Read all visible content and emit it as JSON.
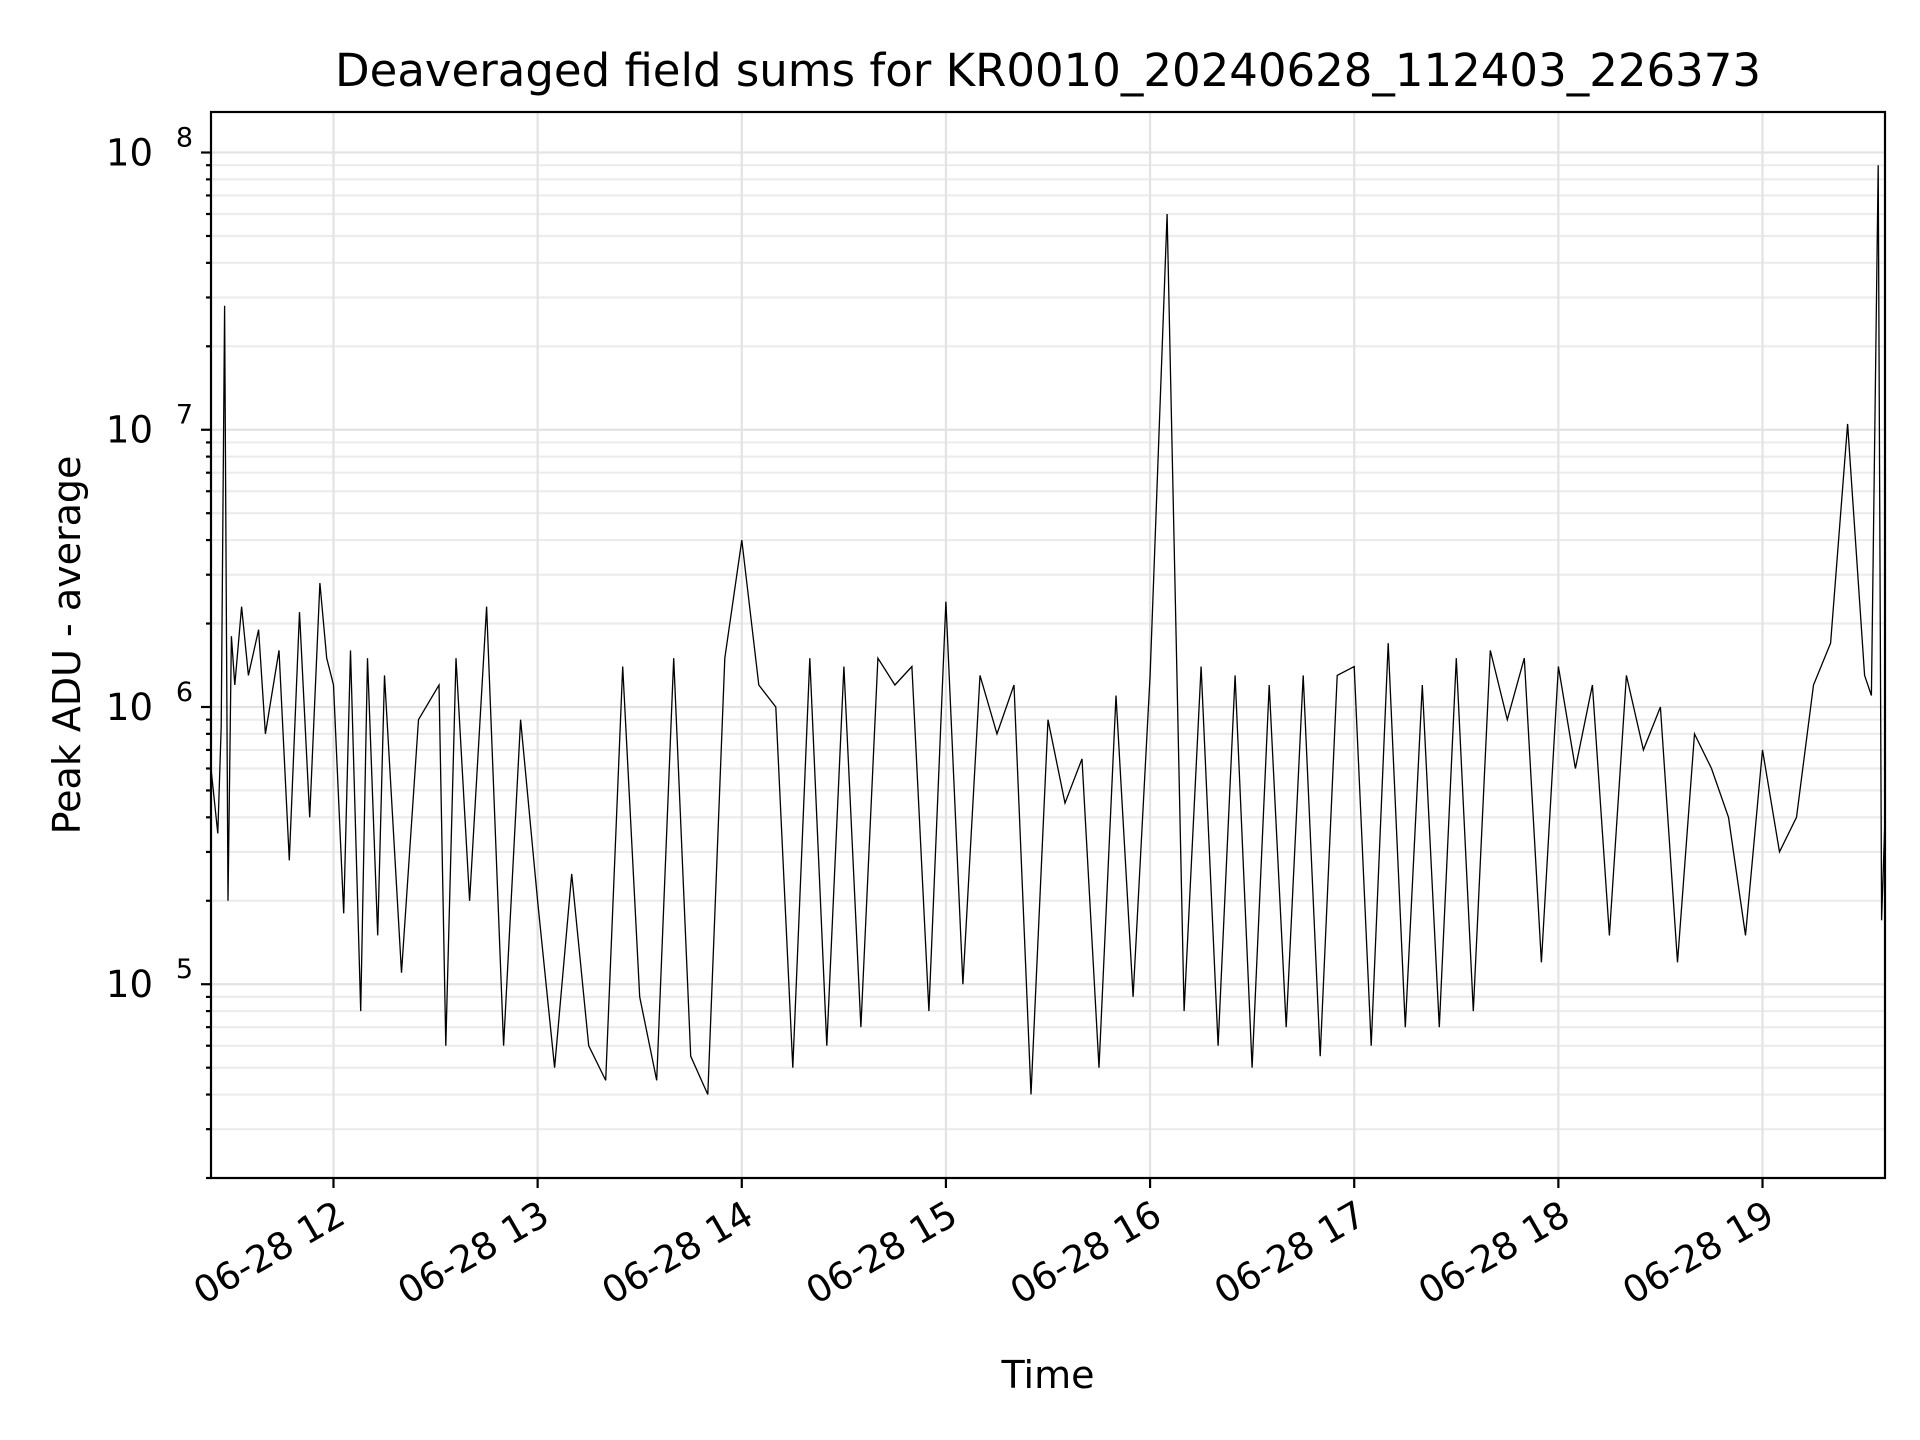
{
  "chart_data": {
    "type": "line",
    "title": "Deaveraged field sums for KR0010_20240628_112403_226373",
    "xlabel": "Time",
    "ylabel": "Peak ADU - average",
    "x_axis": {
      "type": "datetime",
      "range": [
        "2024-06-28 11:24",
        "2024-06-28 19:36"
      ],
      "ticks": [
        "06-28 12",
        "06-28 13",
        "06-28 14",
        "06-28 15",
        "06-28 16",
        "06-28 17",
        "06-28 18",
        "06-28 19"
      ]
    },
    "y_axis": {
      "scale": "log",
      "range": [
        20000,
        140000000
      ],
      "ticks": [
        {
          "base": "10",
          "exp": "5"
        },
        {
          "base": "10",
          "exp": "6"
        },
        {
          "base": "10",
          "exp": "7"
        },
        {
          "base": "10",
          "exp": "8"
        }
      ]
    },
    "grid": true,
    "legend": "none",
    "line_color": "#000000",
    "series": [
      {
        "x": [
          "2024-06-28 11:24",
          "2024-06-28 11:26",
          "2024-06-28 11:27",
          "2024-06-28 11:28",
          "2024-06-28 11:29",
          "2024-06-28 11:30",
          "2024-06-28 11:31",
          "2024-06-28 11:33",
          "2024-06-28 11:35",
          "2024-06-28 11:38",
          "2024-06-28 11:40",
          "2024-06-28 11:44",
          "2024-06-28 11:47",
          "2024-06-28 11:50",
          "2024-06-28 11:53",
          "2024-06-28 11:56",
          "2024-06-28 11:58",
          "2024-06-28 12:00",
          "2024-06-28 12:03",
          "2024-06-28 12:05",
          "2024-06-28 12:08",
          "2024-06-28 12:10",
          "2024-06-28 12:13",
          "2024-06-28 12:15",
          "2024-06-28 12:20",
          "2024-06-28 12:25",
          "2024-06-28 12:31",
          "2024-06-28 12:33",
          "2024-06-28 12:36",
          "2024-06-28 12:40",
          "2024-06-28 12:45",
          "2024-06-28 12:50",
          "2024-06-28 12:55",
          "2024-06-28 13:00",
          "2024-06-28 13:05",
          "2024-06-28 13:10",
          "2024-06-28 13:15",
          "2024-06-28 13:20",
          "2024-06-28 13:25",
          "2024-06-28 13:30",
          "2024-06-28 13:35",
          "2024-06-28 13:40",
          "2024-06-28 13:45",
          "2024-06-28 13:50",
          "2024-06-28 13:55",
          "2024-06-28 14:00",
          "2024-06-28 14:05",
          "2024-06-28 14:10",
          "2024-06-28 14:15",
          "2024-06-28 14:20",
          "2024-06-28 14:25",
          "2024-06-28 14:30",
          "2024-06-28 14:35",
          "2024-06-28 14:40",
          "2024-06-28 14:45",
          "2024-06-28 14:50",
          "2024-06-28 14:55",
          "2024-06-28 15:00",
          "2024-06-28 15:05",
          "2024-06-28 15:10",
          "2024-06-28 15:15",
          "2024-06-28 15:20",
          "2024-06-28 15:25",
          "2024-06-28 15:30",
          "2024-06-28 15:35",
          "2024-06-28 15:40",
          "2024-06-28 15:45",
          "2024-06-28 15:50",
          "2024-06-28 15:55",
          "2024-06-28 16:00",
          "2024-06-28 16:05",
          "2024-06-28 16:10",
          "2024-06-28 16:15",
          "2024-06-28 16:20",
          "2024-06-28 16:25",
          "2024-06-28 16:30",
          "2024-06-28 16:35",
          "2024-06-28 16:40",
          "2024-06-28 16:45",
          "2024-06-28 16:50",
          "2024-06-28 16:55",
          "2024-06-28 17:00",
          "2024-06-28 17:05",
          "2024-06-28 17:10",
          "2024-06-28 17:15",
          "2024-06-28 17:20",
          "2024-06-28 17:25",
          "2024-06-28 17:30",
          "2024-06-28 17:35",
          "2024-06-28 17:40",
          "2024-06-28 17:45",
          "2024-06-28 17:50",
          "2024-06-28 17:55",
          "2024-06-28 18:00",
          "2024-06-28 18:05",
          "2024-06-28 18:10",
          "2024-06-28 18:15",
          "2024-06-28 18:20",
          "2024-06-28 18:25",
          "2024-06-28 18:30",
          "2024-06-28 18:35",
          "2024-06-28 18:40",
          "2024-06-28 18:45",
          "2024-06-28 18:50",
          "2024-06-28 18:55",
          "2024-06-28 19:00",
          "2024-06-28 19:05",
          "2024-06-28 19:10",
          "2024-06-28 19:15",
          "2024-06-28 19:20",
          "2024-06-28 19:25",
          "2024-06-28 19:30",
          "2024-06-28 19:32",
          "2024-06-28 19:34",
          "2024-06-28 19:35",
          "2024-06-28 19:36"
        ],
        "y": [
          600000,
          350000,
          850000,
          28000000,
          200000,
          1800000,
          1200000,
          2300000,
          1300000,
          1900000,
          800000,
          1600000,
          280000,
          2200000,
          400000,
          2800000,
          1500000,
          1200000,
          180000,
          1600000,
          80000,
          1500000,
          150000,
          1300000,
          110000,
          900000,
          1200000,
          60000,
          1500000,
          200000,
          2300000,
          60000,
          900000,
          200000,
          50000,
          250000,
          60000,
          45000,
          1400000,
          90000,
          45000,
          1500000,
          55000,
          40000,
          1500000,
          4000000,
          1200000,
          1000000,
          50000,
          1500000,
          60000,
          1400000,
          70000,
          1500000,
          1200000,
          1400000,
          80000,
          2400000,
          100000,
          1300000,
          800000,
          1200000,
          40000,
          900000,
          450000,
          650000,
          50000,
          1100000,
          90000,
          1300000,
          60000000,
          80000,
          1400000,
          60000,
          1300000,
          50000,
          1200000,
          70000,
          1300000,
          55000,
          1300000,
          1400000,
          60000,
          1700000,
          70000,
          1200000,
          70000,
          1500000,
          80000,
          1600000,
          900000,
          1500000,
          120000,
          1400000,
          600000,
          1200000,
          150000,
          1300000,
          700000,
          1000000,
          120000,
          800000,
          600000,
          400000,
          150000,
          700000,
          300000,
          400000,
          1200000,
          1700000,
          10500000,
          1300000,
          1100000,
          90000000,
          170000,
          400000
        ]
      }
    ]
  }
}
